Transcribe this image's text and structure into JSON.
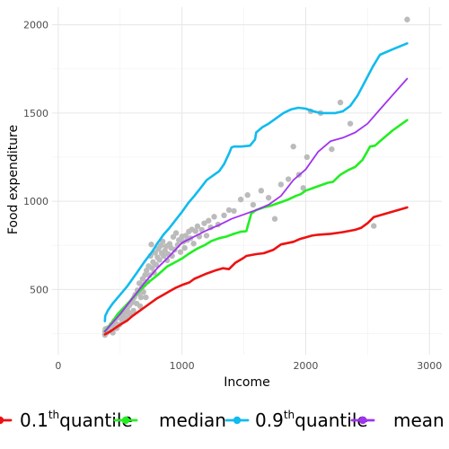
{
  "chart_data": {
    "type": "line",
    "xlabel": "Income",
    "ylabel": "Food expenditure",
    "xlim": [
      -50,
      3100
    ],
    "ylim": [
      130,
      2100
    ],
    "xticks": [
      0,
      1000,
      2000,
      3000
    ],
    "yticks": [
      500,
      1000,
      1500,
      2000
    ],
    "xtick_labels": [
      "0",
      "1000",
      "2000",
      "3000"
    ],
    "ytick_labels": [
      "500",
      "1000",
      "1500",
      "2000"
    ],
    "grid": true,
    "legend_position": "bottom",
    "legend": [
      {
        "id": "q01",
        "pre": "0.1",
        "sup": "th",
        "post": "quantile",
        "color": "#ee1111"
      },
      {
        "id": "median",
        "pre": "median",
        "sup": "",
        "post": "",
        "color": "#22ee22"
      },
      {
        "id": "q09",
        "pre": "0.9",
        "sup": "th",
        "post": "quantile",
        "color": "#11bbee"
      },
      {
        "id": "mean",
        "pre": "mean",
        "sup": "",
        "post": "",
        "color": "#a033ee"
      }
    ],
    "points_color": "#bbbbbb",
    "points": [
      [
        377,
        242
      ],
      [
        378,
        262
      ],
      [
        382,
        276
      ],
      [
        392,
        255
      ],
      [
        405,
        282
      ],
      [
        418,
        266
      ],
      [
        430,
        300
      ],
      [
        441,
        255
      ],
      [
        447,
        292
      ],
      [
        452,
        320
      ],
      [
        461,
        312
      ],
      [
        472,
        280
      ],
      [
        485,
        340
      ],
      [
        493,
        300
      ],
      [
        505,
        348
      ],
      [
        518,
        325
      ],
      [
        526,
        362
      ],
      [
        540,
        380
      ],
      [
        546,
        340
      ],
      [
        558,
        395
      ],
      [
        566,
        370
      ],
      [
        575,
        410
      ],
      [
        584,
        355
      ],
      [
        593,
        425
      ],
      [
        600,
        440
      ],
      [
        608,
        380
      ],
      [
        614,
        455
      ],
      [
        622,
        470
      ],
      [
        633,
        420
      ],
      [
        640,
        495
      ],
      [
        650,
        478
      ],
      [
        655,
        535
      ],
      [
        662,
        405
      ],
      [
        668,
        455
      ],
      [
        675,
        510
      ],
      [
        682,
        560
      ],
      [
        688,
        485
      ],
      [
        694,
        528
      ],
      [
        701,
        582
      ],
      [
        708,
        455
      ],
      [
        714,
        608
      ],
      [
        722,
        545
      ],
      [
        730,
        632
      ],
      [
        738,
        580
      ],
      [
        746,
        690
      ],
      [
        752,
        755
      ],
      [
        758,
        622
      ],
      [
        766,
        655
      ],
      [
        774,
        595
      ],
      [
        783,
        708
      ],
      [
        791,
        640
      ],
      [
        802,
        682
      ],
      [
        810,
        730
      ],
      [
        818,
        668
      ],
      [
        828,
        748
      ],
      [
        836,
        705
      ],
      [
        844,
        772
      ],
      [
        852,
        690
      ],
      [
        862,
        720
      ],
      [
        872,
        745
      ],
      [
        880,
        665
      ],
      [
        890,
        700
      ],
      [
        900,
        758
      ],
      [
        912,
        735
      ],
      [
        920,
        690
      ],
      [
        930,
        798
      ],
      [
        940,
        725
      ],
      [
        952,
        820
      ],
      [
        965,
        752
      ],
      [
        975,
        780
      ],
      [
        988,
        712
      ],
      [
        1000,
        800
      ],
      [
        1010,
        770
      ],
      [
        1022,
        735
      ],
      [
        1030,
        805
      ],
      [
        1043,
        780
      ],
      [
        1055,
        828
      ],
      [
        1068,
        790
      ],
      [
        1080,
        840
      ],
      [
        1094,
        760
      ],
      [
        1110,
        830
      ],
      [
        1125,
        858
      ],
      [
        1140,
        800
      ],
      [
        1160,
        838
      ],
      [
        1180,
        875
      ],
      [
        1198,
        805
      ],
      [
        1215,
        890
      ],
      [
        1232,
        852
      ],
      [
        1260,
        912
      ],
      [
        1292,
        868
      ],
      [
        1340,
        920
      ],
      [
        1380,
        950
      ],
      [
        1420,
        945
      ],
      [
        1475,
        1010
      ],
      [
        1530,
        1035
      ],
      [
        1575,
        980
      ],
      [
        1640,
        1060
      ],
      [
        1700,
        1020
      ],
      [
        1750,
        900
      ],
      [
        1800,
        1095
      ],
      [
        1860,
        1125
      ],
      [
        1900,
        1310
      ],
      [
        1945,
        1150
      ],
      [
        1980,
        1075
      ],
      [
        2010,
        1250
      ],
      [
        2040,
        1510
      ],
      [
        2120,
        1500
      ],
      [
        2210,
        1295
      ],
      [
        2280,
        1560
      ],
      [
        2360,
        1440
      ],
      [
        2550,
        860
      ],
      [
        2820,
        2030
      ]
    ],
    "series": [
      {
        "id": "q01",
        "name": "0.1thquantile",
        "color": "#ee1111",
        "width": 2.6,
        "x": [
          377,
          420,
          500,
          560,
          600,
          650,
          700,
          750,
          800,
          850,
          900,
          950,
          1000,
          1060,
          1100,
          1150,
          1200,
          1280,
          1330,
          1380,
          1430,
          1500,
          1520,
          1560,
          1600,
          1660,
          1740,
          1800,
          1900,
          1950,
          2000,
          2050,
          2100,
          2200,
          2300,
          2400,
          2450,
          2500,
          2550,
          2820
        ],
        "y": [
          245,
          262,
          300,
          325,
          350,
          375,
          400,
          425,
          450,
          470,
          490,
          510,
          525,
          540,
          560,
          575,
          590,
          610,
          620,
          615,
          650,
          680,
          690,
          695,
          700,
          705,
          725,
          755,
          770,
          785,
          795,
          805,
          810,
          815,
          825,
          838,
          850,
          875,
          910,
          965
        ]
      },
      {
        "id": "median",
        "name": "median",
        "color": "#22ee22",
        "width": 2.6,
        "x": [
          377,
          420,
          480,
          540,
          600,
          660,
          720,
          800,
          880,
          960,
          1000,
          1050,
          1120,
          1180,
          1240,
          1300,
          1360,
          1420,
          1480,
          1520,
          1560,
          1600,
          1660,
          1720,
          1760,
          1800,
          1860,
          1920,
          1960,
          2000,
          2060,
          2120,
          2180,
          2220,
          2280,
          2340,
          2400,
          2460,
          2520,
          2560,
          2600,
          2700,
          2820
        ],
        "y": [
          262,
          300,
          360,
          405,
          450,
          495,
          535,
          580,
          630,
          660,
          675,
          700,
          730,
          750,
          775,
          790,
          800,
          815,
          828,
          830,
          930,
          950,
          965,
          975,
          985,
          995,
          1010,
          1030,
          1040,
          1060,
          1075,
          1090,
          1105,
          1110,
          1150,
          1175,
          1195,
          1235,
          1310,
          1315,
          1340,
          1400,
          1460
        ]
      },
      {
        "id": "q09",
        "name": "0.9thquantile",
        "color": "#11bbee",
        "width": 2.6,
        "x": [
          377,
          380,
          400,
          440,
          500,
          560,
          600,
          640,
          700,
          760,
          800,
          850,
          900,
          950,
          1000,
          1050,
          1100,
          1150,
          1200,
          1260,
          1300,
          1340,
          1380,
          1400,
          1420,
          1440,
          1480,
          1550,
          1590,
          1600,
          1650,
          1700,
          1760,
          1820,
          1880,
          1940,
          2000,
          2060,
          2120,
          2180,
          2240,
          2300,
          2360,
          2420,
          2480,
          2540,
          2600,
          2700,
          2820
        ],
        "y": [
          320,
          350,
          380,
          420,
          470,
          520,
          560,
          600,
          660,
          715,
          760,
          810,
          850,
          895,
          940,
          990,
          1030,
          1075,
          1120,
          1150,
          1170,
          1210,
          1270,
          1305,
          1310,
          1310,
          1310,
          1315,
          1350,
          1390,
          1420,
          1440,
          1470,
          1500,
          1520,
          1530,
          1525,
          1510,
          1500,
          1500,
          1500,
          1510,
          1540,
          1600,
          1680,
          1760,
          1830,
          1860,
          1895
        ]
      },
      {
        "id": "mean",
        "name": "mean",
        "color": "#a033ee",
        "width": 1.8,
        "x": [
          377,
          500,
          600,
          700,
          800,
          900,
          1000,
          1100,
          1200,
          1300,
          1400,
          1500,
          1600,
          1700,
          1800,
          1900,
          2000,
          2100,
          2200,
          2300,
          2400,
          2500,
          2600,
          2700,
          2820
        ],
        "y": [
          262,
          360,
          450,
          540,
          620,
          690,
          765,
          800,
          835,
          865,
          900,
          925,
          950,
          980,
          1030,
          1120,
          1180,
          1280,
          1340,
          1360,
          1390,
          1440,
          1520,
          1600,
          1695
        ]
      }
    ]
  }
}
